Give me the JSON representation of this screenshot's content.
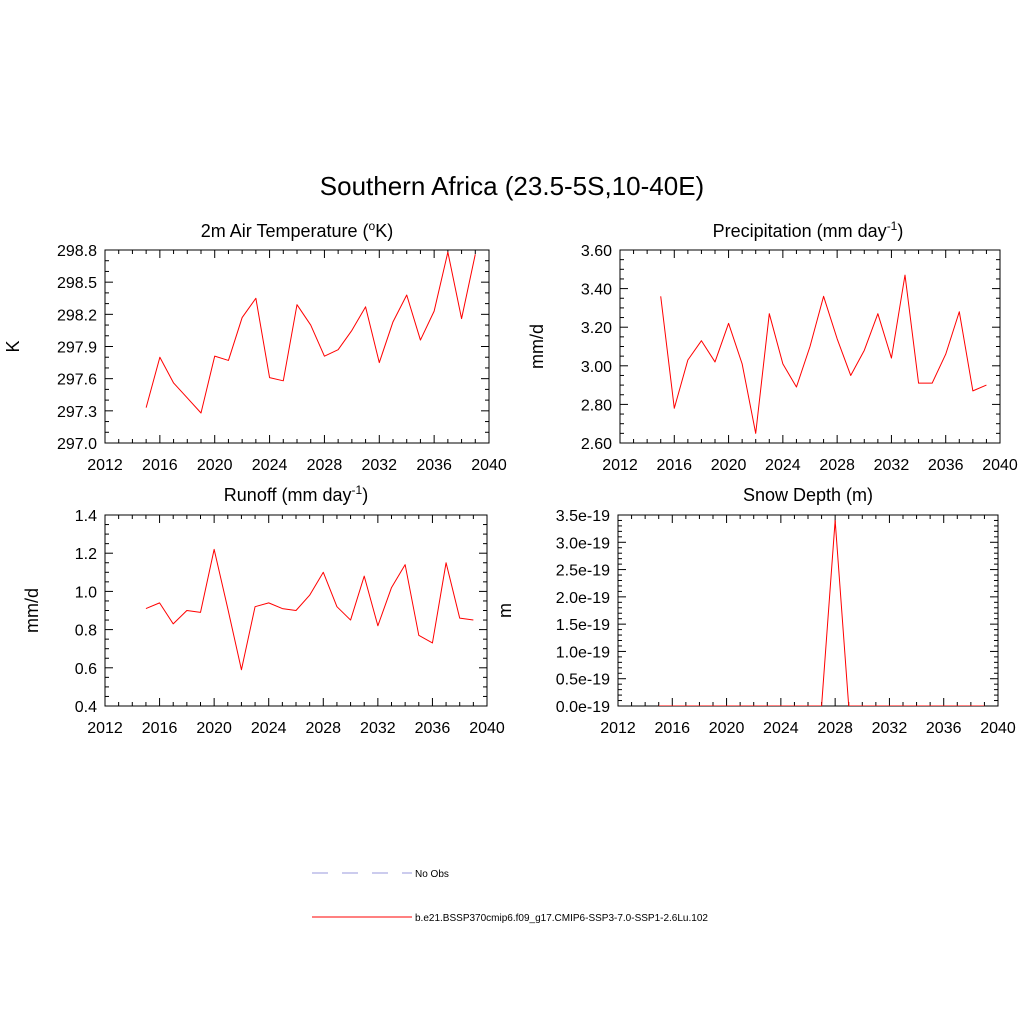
{
  "title": "Southern Africa (23.5-5S,10-40E)",
  "colors": {
    "model": "#ff0000",
    "obs": "#9999dd",
    "axis": "#000000"
  },
  "legend": {
    "entries": [
      {
        "label": "No Obs",
        "style": "dashed",
        "color": "#9999dd"
      },
      {
        "label": "b.e21.BSSP370cmip6.f09_g17.CMIP6-SSP3-7.0-SSP1-2.6Lu.102",
        "style": "solid",
        "color": "#ff0000"
      }
    ]
  },
  "chart_data": [
    {
      "type": "line",
      "title_main": "2m Air Temperature (",
      "title_sup": "o",
      "title_rest": "K)",
      "ylabel": "K",
      "xlim": [
        2012,
        2040
      ],
      "ylim": [
        297.0,
        298.8
      ],
      "x_major_ticks": [
        2012,
        2016,
        2020,
        2024,
        2028,
        2032,
        2036,
        2040
      ],
      "x_tick_labels": [
        "2012",
        "2016",
        "2020",
        "2024",
        "2028",
        "2032",
        "2036",
        "2040"
      ],
      "y_major_ticks": [
        297.0,
        297.3,
        297.6,
        297.9,
        298.2,
        298.5,
        298.8
      ],
      "y_tick_labels": [
        "297.0",
        "297.3",
        "297.6",
        "297.9",
        "298.2",
        "298.5",
        "298.8"
      ],
      "y_minor_step": 0.1,
      "series": [
        {
          "color": "#ff0000",
          "x": [
            2015,
            2016,
            2017,
            2018,
            2019,
            2020,
            2021,
            2022,
            2023,
            2024,
            2025,
            2026,
            2027,
            2028,
            2029,
            2030,
            2031,
            2032,
            2033,
            2034,
            2035,
            2036,
            2037,
            2038,
            2039
          ],
          "y": [
            297.33,
            297.8,
            297.56,
            297.42,
            297.28,
            297.81,
            297.77,
            298.17,
            298.35,
            297.61,
            297.58,
            298.29,
            298.1,
            297.81,
            297.87,
            298.05,
            298.27,
            297.75,
            298.13,
            298.38,
            297.96,
            298.23,
            298.78,
            298.16,
            298.76
          ]
        }
      ]
    },
    {
      "type": "line",
      "title_main": "Precipitation (mm day",
      "title_sup": "-1",
      "title_rest": ")",
      "ylabel": "mm/d",
      "xlim": [
        2012,
        2040
      ],
      "ylim": [
        2.6,
        3.6
      ],
      "x_major_ticks": [
        2012,
        2016,
        2020,
        2024,
        2028,
        2032,
        2036,
        2040
      ],
      "x_tick_labels": [
        "2012",
        "2016",
        "2020",
        "2024",
        "2028",
        "2032",
        "2036",
        "2040"
      ],
      "y_major_ticks": [
        2.6,
        2.8,
        3.0,
        3.2,
        3.4,
        3.6
      ],
      "y_tick_labels": [
        "2.60",
        "2.80",
        "3.00",
        "3.20",
        "3.40",
        "3.60"
      ],
      "y_minor_step": 0.05,
      "series": [
        {
          "color": "#ff0000",
          "x": [
            2015,
            2016,
            2017,
            2018,
            2019,
            2020,
            2021,
            2022,
            2023,
            2024,
            2025,
            2026,
            2027,
            2028,
            2029,
            2030,
            2031,
            2032,
            2033,
            2034,
            2035,
            2036,
            2037,
            2038,
            2039
          ],
          "y": [
            3.36,
            2.78,
            3.03,
            3.13,
            3.02,
            3.22,
            3.01,
            2.65,
            3.27,
            3.01,
            2.89,
            3.1,
            3.36,
            3.14,
            2.95,
            3.08,
            3.27,
            3.04,
            3.47,
            2.91,
            2.91,
            3.06,
            3.28,
            2.87,
            2.9
          ]
        }
      ]
    },
    {
      "type": "line",
      "title_main": "Runoff (mm day",
      "title_sup": "-1",
      "title_rest": ")",
      "ylabel": "mm/d",
      "xlim": [
        2012,
        2040
      ],
      "ylim": [
        0.4,
        1.4
      ],
      "x_major_ticks": [
        2012,
        2016,
        2020,
        2024,
        2028,
        2032,
        2036,
        2040
      ],
      "x_tick_labels": [
        "2012",
        "2016",
        "2020",
        "2024",
        "2028",
        "2032",
        "2036",
        "2040"
      ],
      "y_major_ticks": [
        0.4,
        0.6,
        0.8,
        1.0,
        1.2,
        1.4
      ],
      "y_tick_labels": [
        "0.4",
        "0.6",
        "0.8",
        "1.0",
        "1.2",
        "1.4"
      ],
      "y_minor_step": 0.05,
      "series": [
        {
          "color": "#ff0000",
          "x": [
            2015,
            2016,
            2017,
            2018,
            2019,
            2020,
            2021,
            2022,
            2023,
            2024,
            2025,
            2026,
            2027,
            2028,
            2029,
            2030,
            2031,
            2032,
            2033,
            2034,
            2035,
            2036,
            2037,
            2038,
            2039
          ],
          "y": [
            0.91,
            0.94,
            0.83,
            0.9,
            0.89,
            1.22,
            0.91,
            0.59,
            0.92,
            0.94,
            0.91,
            0.9,
            0.98,
            1.1,
            0.92,
            0.85,
            1.08,
            0.82,
            1.02,
            1.14,
            0.77,
            0.73,
            1.15,
            0.86,
            0.85
          ]
        }
      ]
    },
    {
      "type": "line",
      "title_main": "Snow Depth (m)",
      "title_sup": "",
      "title_rest": "",
      "ylabel": "m",
      "xlim": [
        2012,
        2040
      ],
      "ylim": [
        0,
        3.5e-19
      ],
      "x_major_ticks": [
        2012,
        2016,
        2020,
        2024,
        2028,
        2032,
        2036,
        2040
      ],
      "x_tick_labels": [
        "2012",
        "2016",
        "2020",
        "2024",
        "2028",
        "2032",
        "2036",
        "2040"
      ],
      "y_major_ticks": [
        0,
        5e-20,
        1e-19,
        1.5e-19,
        2e-19,
        2.5e-19,
        3e-19,
        3.5e-19
      ],
      "y_tick_labels": [
        "0.0e-19",
        "0.5e-19",
        "1.0e-19",
        "1.5e-19",
        "2.0e-19",
        "2.5e-19",
        "3.0e-19",
        "3.5e-19"
      ],
      "y_minor_step": 1e-20,
      "series": [
        {
          "color": "#ff0000",
          "x": [
            2015,
            2016,
            2017,
            2018,
            2019,
            2020,
            2021,
            2022,
            2023,
            2024,
            2025,
            2026,
            2027,
            2028,
            2029,
            2030,
            2031,
            2032,
            2033,
            2034,
            2035,
            2036,
            2037,
            2038,
            2039
          ],
          "y": [
            0,
            0,
            0,
            0,
            0,
            0,
            0,
            0,
            0,
            0,
            0,
            0,
            0,
            3.4e-19,
            0,
            0,
            0,
            0,
            0,
            0,
            0,
            0,
            0,
            0,
            0
          ]
        }
      ]
    }
  ]
}
